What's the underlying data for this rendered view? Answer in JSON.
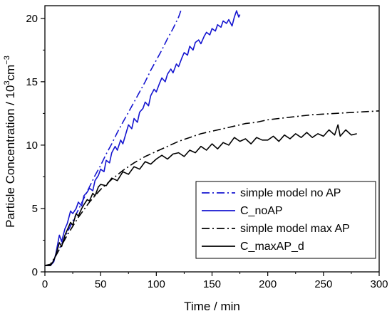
{
  "chart_data": {
    "type": "line",
    "xlabel": "Time / min",
    "ylabel_main": "Particle Concentration / 10",
    "ylabel_sup1": "3",
    "ylabel_unit": "cm",
    "ylabel_sup2": "−3",
    "xlim": [
      0,
      300
    ],
    "ylim": [
      0,
      21
    ],
    "xticks": [
      "0",
      "50",
      "100",
      "150",
      "200",
      "250",
      "300"
    ],
    "yticks": [
      "0",
      "5",
      "10",
      "15",
      "20"
    ],
    "xtick_values": [
      0,
      50,
      100,
      150,
      200,
      250,
      300
    ],
    "ytick_values": [
      0,
      5,
      10,
      15,
      20
    ],
    "grid": false,
    "legend_position": "bottom-right",
    "series": [
      {
        "name": "simple model no AP",
        "color": "#1515d0",
        "style": "dash-dot",
        "x": [
          0,
          5,
          10,
          15,
          20,
          25,
          30,
          35,
          40,
          45,
          50,
          55,
          60,
          65,
          70,
          75,
          80,
          85,
          90,
          95,
          100,
          105,
          110,
          115,
          120,
          122
        ],
        "y": [
          0.5,
          0.5,
          1.3,
          2.2,
          3.1,
          4.0,
          4.9,
          5.8,
          6.7,
          7.6,
          8.4,
          9.3,
          10.1,
          11.0,
          11.8,
          12.6,
          13.4,
          14.2,
          15.0,
          15.9,
          16.7,
          17.5,
          18.4,
          19.2,
          20.1,
          20.6
        ]
      },
      {
        "name": "C_noAP",
        "color": "#1515d0",
        "style": "solid",
        "x": [
          0,
          5,
          8,
          10,
          13,
          15,
          18,
          20,
          23,
          25,
          28,
          30,
          33,
          35,
          38,
          40,
          43,
          45,
          48,
          50,
          53,
          55,
          58,
          60,
          63,
          65,
          68,
          70,
          73,
          75,
          78,
          80,
          83,
          85,
          88,
          90,
          93,
          95,
          98,
          100,
          103,
          105,
          108,
          110,
          113,
          115,
          118,
          120,
          123,
          125,
          128,
          130,
          133,
          135,
          138,
          140,
          143,
          145,
          148,
          150,
          153,
          155,
          158,
          160,
          163,
          165,
          168,
          170,
          172,
          174,
          175
        ],
        "y": [
          0.5,
          0.5,
          0.8,
          1.5,
          2.9,
          2.4,
          3.4,
          3.8,
          4.8,
          4.6,
          5.0,
          5.5,
          5.2,
          6.0,
          6.3,
          6.6,
          6.4,
          7.2,
          7.6,
          8.1,
          7.9,
          8.8,
          8.6,
          9.4,
          9.9,
          9.6,
          10.4,
          10.1,
          11.0,
          11.6,
          11.3,
          12.1,
          11.8,
          12.6,
          12.9,
          13.4,
          13.1,
          13.9,
          14.4,
          14.2,
          14.9,
          15.3,
          15.0,
          15.6,
          16.0,
          15.7,
          16.4,
          16.2,
          16.9,
          17.3,
          17.1,
          17.8,
          17.5,
          18.1,
          18.3,
          18.0,
          18.6,
          18.9,
          18.7,
          19.2,
          19.0,
          19.5,
          19.3,
          19.8,
          19.6,
          19.9,
          19.4,
          20.1,
          20.6,
          20.1,
          20.3
        ]
      },
      {
        "name": "simple model max AP",
        "color": "#000000",
        "style": "dash-dot",
        "x": [
          0,
          5,
          10,
          15,
          20,
          25,
          30,
          35,
          40,
          45,
          50,
          60,
          70,
          80,
          90,
          100,
          110,
          120,
          130,
          140,
          150,
          160,
          170,
          180,
          190,
          200,
          210,
          220,
          230,
          240,
          250,
          260,
          270,
          280,
          290,
          300
        ],
        "y": [
          0.5,
          0.6,
          1.3,
          2.1,
          2.9,
          3.6,
          4.3,
          4.9,
          5.5,
          6.0,
          6.5,
          7.3,
          8.0,
          8.6,
          9.1,
          9.5,
          9.9,
          10.3,
          10.6,
          10.9,
          11.1,
          11.3,
          11.5,
          11.7,
          11.8,
          12.0,
          12.1,
          12.2,
          12.3,
          12.4,
          12.45,
          12.5,
          12.55,
          12.6,
          12.65,
          12.7
        ]
      },
      {
        "name": "C_maxAP_d",
        "color": "#000000",
        "style": "solid",
        "x": [
          0,
          5,
          8,
          10,
          13,
          15,
          18,
          20,
          23,
          25,
          28,
          30,
          33,
          35,
          38,
          40,
          43,
          45,
          48,
          50,
          55,
          60,
          65,
          70,
          75,
          80,
          85,
          90,
          95,
          100,
          105,
          110,
          115,
          120,
          125,
          130,
          135,
          140,
          145,
          150,
          155,
          160,
          165,
          170,
          175,
          180,
          185,
          190,
          195,
          200,
          205,
          210,
          215,
          220,
          225,
          230,
          235,
          240,
          245,
          250,
          255,
          260,
          263,
          265,
          270,
          275,
          280
        ],
        "y": [
          0.5,
          0.5,
          0.9,
          1.4,
          2.3,
          2.0,
          2.9,
          3.3,
          3.9,
          3.7,
          4.6,
          4.4,
          5.0,
          5.3,
          5.7,
          5.6,
          6.2,
          6.0,
          6.7,
          6.9,
          6.8,
          7.4,
          7.2,
          7.9,
          7.7,
          8.3,
          8.1,
          8.7,
          8.5,
          8.9,
          9.2,
          8.9,
          9.3,
          9.4,
          9.1,
          9.6,
          9.4,
          9.9,
          9.6,
          10.1,
          9.7,
          10.2,
          10.0,
          10.6,
          10.3,
          10.5,
          10.1,
          10.6,
          10.4,
          10.4,
          10.7,
          10.3,
          10.8,
          10.5,
          10.9,
          10.6,
          11.0,
          10.6,
          10.9,
          10.7,
          11.2,
          10.8,
          11.6,
          10.7,
          11.2,
          10.8,
          10.9
        ]
      }
    ]
  }
}
